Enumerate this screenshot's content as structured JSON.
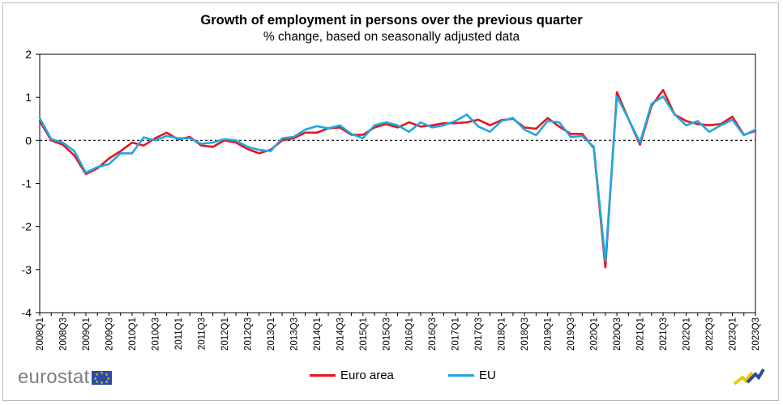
{
  "title": "Growth of employment in persons over the previous quarter",
  "subtitle": "% change, based on seasonally adjusted data",
  "logo_text": "eurostat",
  "colors": {
    "euro_area": "#e8141c",
    "eu": "#1fa8e0",
    "zero_line": "#000000",
    "grid": "#ffffff"
  },
  "chart_data": {
    "type": "line",
    "title": "Growth of employment in persons over the previous quarter",
    "subtitle": "% change, based on seasonally adjusted data",
    "ylim": [
      -4,
      2
    ],
    "yticks": [
      2,
      1,
      0,
      -1,
      -2,
      -3,
      -4
    ],
    "zero_line": "dashed",
    "legend_position": "bottom-center",
    "x": [
      "2008Q1",
      "2008Q2",
      "2008Q3",
      "2008Q4",
      "2009Q1",
      "2009Q2",
      "2009Q3",
      "2009Q4",
      "2010Q1",
      "2010Q2",
      "2010Q3",
      "2010Q4",
      "2011Q1",
      "2011Q2",
      "2011Q3",
      "2011Q4",
      "2012Q1",
      "2012Q2",
      "2012Q3",
      "2012Q4",
      "2013Q1",
      "2013Q2",
      "2013Q3",
      "2013Q4",
      "2014Q1",
      "2014Q2",
      "2014Q3",
      "2014Q4",
      "2015Q1",
      "2015Q2",
      "2015Q3",
      "2015Q4",
      "2016Q1",
      "2016Q2",
      "2016Q3",
      "2016Q4",
      "2017Q1",
      "2017Q2",
      "2017Q3",
      "2017Q4",
      "2018Q1",
      "2018Q2",
      "2018Q3",
      "2018Q4",
      "2019Q1",
      "2019Q2",
      "2019Q3",
      "2019Q4",
      "2020Q1",
      "2020Q2",
      "2020Q3",
      "2020Q4",
      "2021Q1",
      "2021Q2",
      "2021Q3",
      "2021Q4",
      "2022Q1",
      "2022Q2",
      "2022Q3",
      "2022Q4",
      "2023Q1",
      "2023Q2",
      "2023Q3"
    ],
    "x_label_every": 2,
    "series": [
      {
        "name": "Euro area",
        "color": "#e8141c",
        "values": [
          0.45,
          0.0,
          -0.1,
          -0.35,
          -0.78,
          -0.65,
          -0.42,
          -0.25,
          -0.05,
          -0.12,
          0.05,
          0.18,
          0.02,
          0.08,
          -0.12,
          -0.15,
          0.0,
          -0.05,
          -0.2,
          -0.3,
          -0.22,
          0.0,
          0.05,
          0.18,
          0.18,
          0.28,
          0.3,
          0.13,
          0.13,
          0.3,
          0.38,
          0.3,
          0.42,
          0.32,
          0.35,
          0.4,
          0.4,
          0.42,
          0.48,
          0.35,
          0.47,
          0.5,
          0.3,
          0.27,
          0.52,
          0.32,
          0.15,
          0.15,
          -0.18,
          -2.95,
          1.12,
          0.5,
          -0.1,
          0.8,
          1.17,
          0.6,
          0.45,
          0.38,
          0.35,
          0.38,
          0.55,
          0.13,
          0.22
        ]
      },
      {
        "name": "EU",
        "color": "#1fa8e0",
        "values": [
          0.52,
          0.03,
          -0.05,
          -0.25,
          -0.75,
          -0.62,
          -0.55,
          -0.3,
          -0.3,
          0.07,
          0.0,
          0.1,
          0.05,
          0.05,
          -0.08,
          -0.05,
          0.03,
          0.0,
          -0.15,
          -0.22,
          -0.25,
          0.05,
          0.08,
          0.25,
          0.33,
          0.28,
          0.35,
          0.15,
          0.05,
          0.35,
          0.42,
          0.35,
          0.2,
          0.42,
          0.3,
          0.35,
          0.45,
          0.6,
          0.32,
          0.2,
          0.45,
          0.52,
          0.25,
          0.12,
          0.45,
          0.42,
          0.08,
          0.1,
          -0.15,
          -2.8,
          1.02,
          0.5,
          -0.05,
          0.85,
          1.02,
          0.6,
          0.35,
          0.45,
          0.2,
          0.35,
          0.48,
          0.12,
          0.25
        ]
      }
    ]
  },
  "legend": [
    {
      "label": "Euro area",
      "color": "#e8141c"
    },
    {
      "label": "EU",
      "color": "#1fa8e0"
    }
  ]
}
